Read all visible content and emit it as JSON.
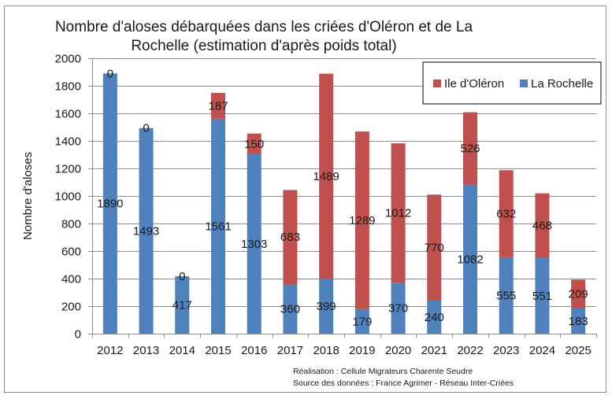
{
  "chart_data": {
    "type": "bar",
    "stacked": true,
    "title": "Nombre d'aloses débarquées dans les criées d'Oléron et de La Rochelle (estimation d'après poids total)",
    "title_lines": [
      "Nombre d'aloses débarquées dans les criées d'Oléron et de La",
      "Rochelle (estimation d'après poids total)"
    ],
    "xlabel": "",
    "ylabel": "Nombre d'aloses",
    "ylim": [
      0,
      2000
    ],
    "yticks": [
      0,
      200,
      400,
      600,
      800,
      1000,
      1200,
      1400,
      1600,
      1800,
      2000
    ],
    "grid": true,
    "legend_position": "top-right",
    "categories": [
      "2012",
      "2013",
      "2014",
      "2015",
      "2016",
      "2017",
      "2018",
      "2019",
      "2020",
      "2021",
      "2022",
      "2023",
      "2024",
      "2025"
    ],
    "series": [
      {
        "name": "La Rochelle",
        "color": "#4f81bd",
        "values": [
          1890,
          1493,
          417,
          1561,
          1303,
          360,
          399,
          179,
          370,
          240,
          1082,
          555,
          551,
          183
        ]
      },
      {
        "name": "Ile d'Oléron",
        "color": "#c0504d",
        "values": [
          0,
          0,
          0,
          187,
          150,
          683,
          1489,
          1289,
          1012,
          770,
          526,
          632,
          468,
          209
        ]
      }
    ],
    "legend_order": [
      "Ile d'Oléron",
      "La Rochelle"
    ],
    "footer": [
      "Réalisation : Cellule Migrateurs Charente Seudre",
      "Source des données : France Agrimer - Réseau Inter-Criées"
    ]
  }
}
